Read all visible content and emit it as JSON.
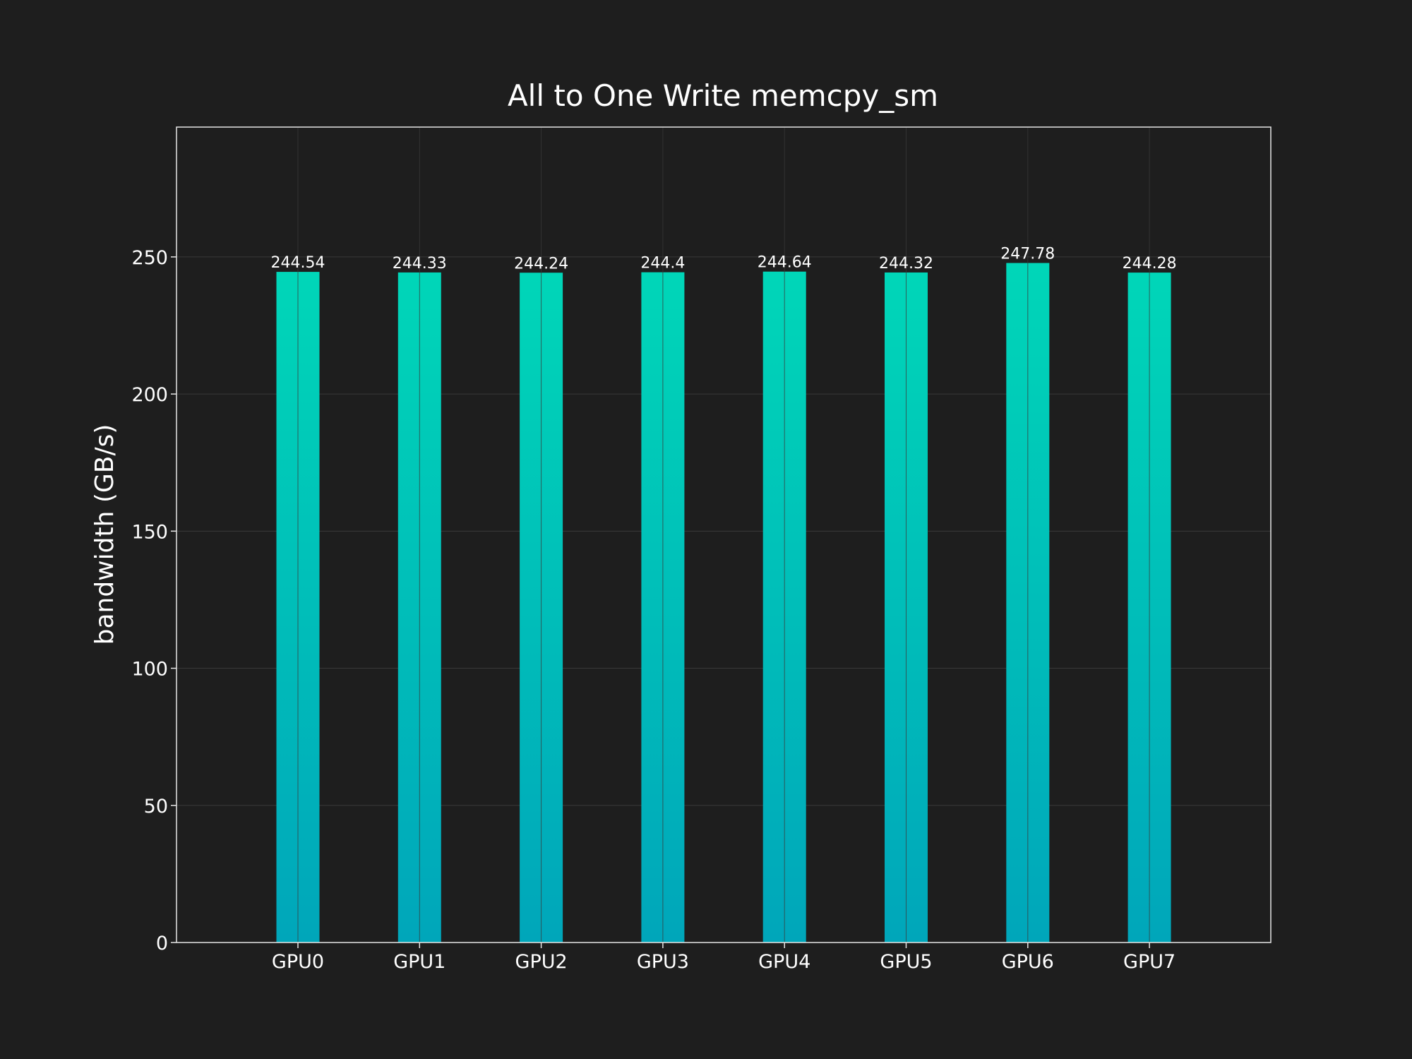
{
  "chart_data": {
    "type": "bar",
    "title": "All to One Write memcpy_sm",
    "xlabel": "",
    "ylabel": "bandwidth (GB/s)",
    "categories": [
      "GPU0",
      "GPU1",
      "GPU2",
      "GPU3",
      "GPU4",
      "GPU5",
      "GPU6",
      "GPU7"
    ],
    "values": [
      244.54,
      244.33,
      244.24,
      244.4,
      244.64,
      244.32,
      247.78,
      244.28
    ],
    "value_labels": [
      "244.54",
      "244.33",
      "244.24",
      "244.4",
      "244.64",
      "244.32",
      "247.78",
      "244.28"
    ],
    "ylim": [
      0,
      297.34
    ],
    "yticks": [
      0,
      50,
      100,
      150,
      200,
      250
    ],
    "ytick_labels": [
      "0",
      "50",
      "100",
      "150",
      "200",
      "250"
    ],
    "grid": true,
    "colors": {
      "background": "#1e1e1e",
      "bar_top": "#00d6b8",
      "bar_bottom": "#00a6ba",
      "text": "#ffffff",
      "grid": "#3a3a3a",
      "frame": "#e6e6e6"
    }
  }
}
